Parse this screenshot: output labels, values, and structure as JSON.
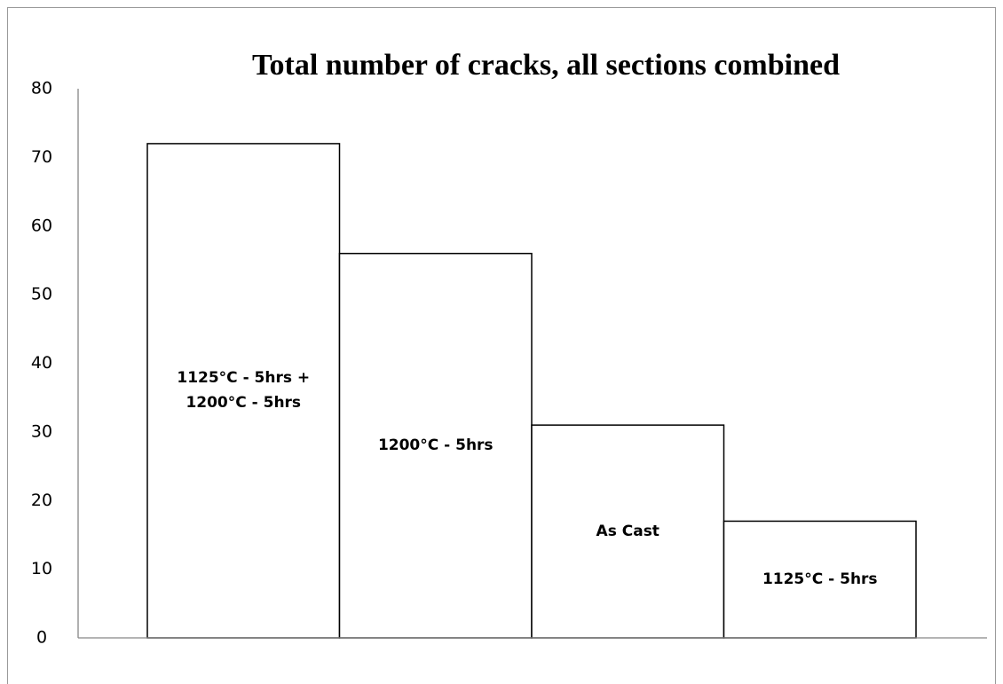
{
  "chart_data": {
    "type": "bar",
    "title": "Total number of cracks, all sections combined",
    "categories": [
      "1125°C - 5hrs + 1200°C - 5hrs",
      "1200°C - 5hrs",
      "As Cast",
      "1125°C - 5hrs"
    ],
    "values": [
      72,
      56,
      31,
      17
    ],
    "color": "#ffffff",
    "ylim": [
      0,
      80
    ],
    "yticks": [
      0,
      10,
      20,
      30,
      40,
      50,
      60,
      70,
      80
    ],
    "grid": false
  }
}
